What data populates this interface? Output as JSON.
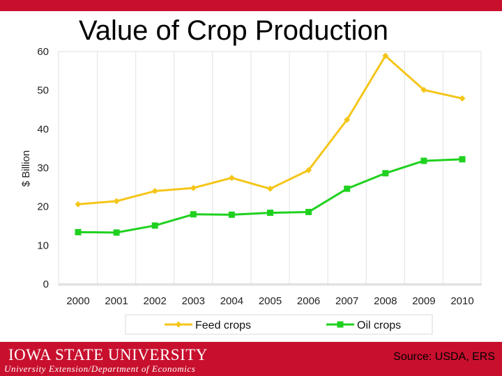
{
  "slide": {
    "title": "Value of Crop Production",
    "university": "IOWA STATE UNIVERSITY",
    "department": "University Extension/Department of Economics",
    "source": "Source: USDA, ERS",
    "accent_color": "#c8102e"
  },
  "chart_data": {
    "type": "line",
    "title": "Value of Crop Production",
    "xlabel": "",
    "ylabel": "$ Billion",
    "categories": [
      "2000",
      "2001",
      "2002",
      "2003",
      "2004",
      "2005",
      "2006",
      "2007",
      "2008",
      "2009",
      "2010"
    ],
    "ylim": [
      0,
      60
    ],
    "yticks": [
      0,
      10,
      20,
      30,
      40,
      50,
      60
    ],
    "grid": true,
    "legend_position": "bottom",
    "series": [
      {
        "name": "Feed crops",
        "color": "#f5c518",
        "marker": "diamond",
        "values": [
          20.6,
          21.4,
          24.0,
          24.8,
          27.4,
          24.6,
          29.4,
          42.4,
          58.9,
          50.1,
          47.9
        ]
      },
      {
        "name": "Oil crops",
        "color": "#1fd11f",
        "marker": "square",
        "values": [
          13.4,
          13.3,
          15.1,
          18.0,
          17.9,
          18.4,
          18.6,
          24.6,
          28.6,
          31.8,
          32.2
        ]
      }
    ]
  }
}
